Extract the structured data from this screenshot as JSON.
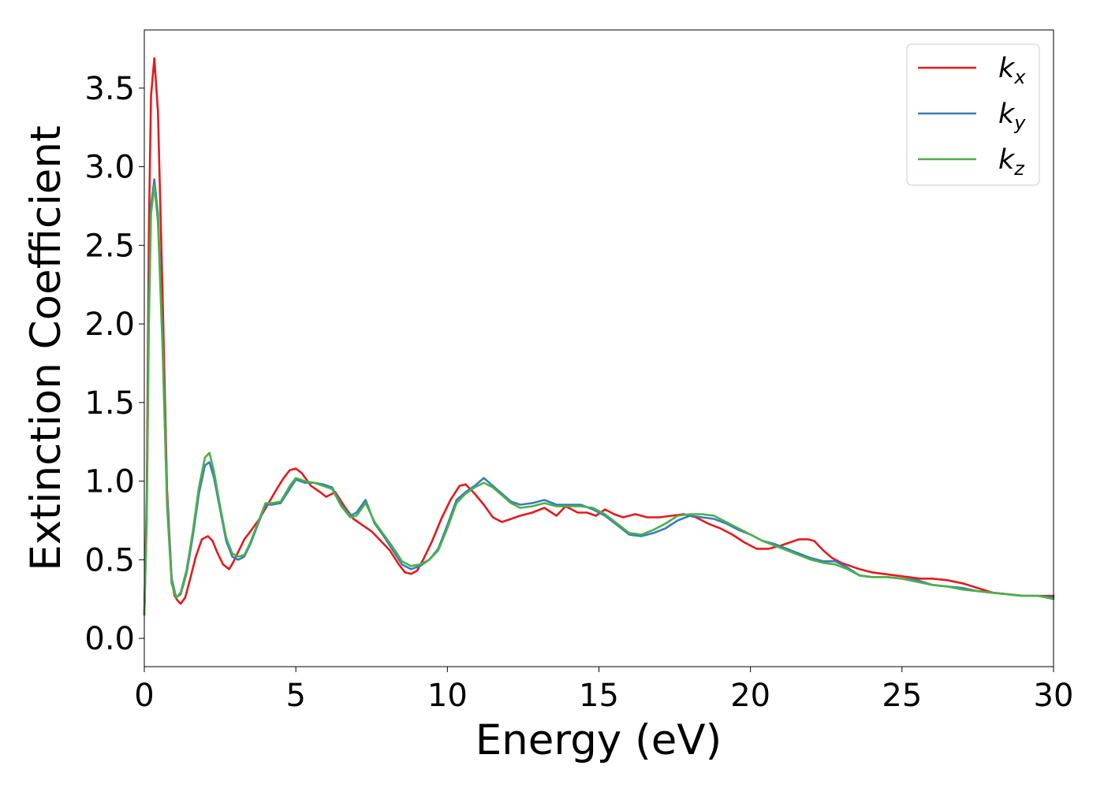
{
  "chart_data": {
    "type": "line",
    "title": "",
    "xlabel": "Energy (eV)",
    "ylabel": "Extinction Coefficient",
    "xlim": [
      0,
      30
    ],
    "ylim": [
      -0.18,
      3.87
    ],
    "xticks": [
      0,
      5,
      10,
      15,
      20,
      25,
      30
    ],
    "xtick_labels": [
      "0",
      "5",
      "10",
      "15",
      "20",
      "25",
      "30"
    ],
    "yticks": [
      0.0,
      0.5,
      1.0,
      1.5,
      2.0,
      2.5,
      3.0,
      3.5
    ],
    "ytick_labels": [
      "0.0",
      "0.5",
      "1.0",
      "1.5",
      "2.0",
      "2.5",
      "3.0",
      "3.5"
    ],
    "grid": false,
    "legend_position": "top-right",
    "series": [
      {
        "name": "kx",
        "label_main": "k",
        "label_sub": "x",
        "color": "#e41a1c",
        "x": [
          0.0,
          0.08,
          0.15,
          0.22,
          0.33,
          0.45,
          0.6,
          0.75,
          0.9,
          1.0,
          1.1,
          1.2,
          1.35,
          1.5,
          1.7,
          1.9,
          2.1,
          2.25,
          2.4,
          2.6,
          2.8,
          2.95,
          3.1,
          3.3,
          3.5,
          3.8,
          4.1,
          4.4,
          4.6,
          4.8,
          5.0,
          5.2,
          5.5,
          5.8,
          6.0,
          6.3,
          6.6,
          6.9,
          7.2,
          7.5,
          7.8,
          8.1,
          8.4,
          8.6,
          8.8,
          9.0,
          9.2,
          9.5,
          9.8,
          10.1,
          10.4,
          10.6,
          10.9,
          11.2,
          11.5,
          11.8,
          12.1,
          12.4,
          12.8,
          13.2,
          13.6,
          13.9,
          14.3,
          14.6,
          14.9,
          15.2,
          15.5,
          15.8,
          16.2,
          16.6,
          17.0,
          17.4,
          17.8,
          18.2,
          18.6,
          19.0,
          19.4,
          19.8,
          20.2,
          20.6,
          21.0,
          21.3,
          21.6,
          21.9,
          22.1,
          22.4,
          22.7,
          23.0,
          23.3,
          23.6,
          24.0,
          24.4,
          24.8,
          25.2,
          25.6,
          26.0,
          26.5,
          27.0,
          27.5,
          28.0,
          28.5,
          29.0,
          29.5,
          30.0
        ],
        "y": [
          0.15,
          0.9,
          2.6,
          3.45,
          3.69,
          3.35,
          2.2,
          0.95,
          0.38,
          0.27,
          0.24,
          0.22,
          0.26,
          0.37,
          0.52,
          0.63,
          0.65,
          0.62,
          0.55,
          0.47,
          0.44,
          0.49,
          0.55,
          0.63,
          0.68,
          0.76,
          0.86,
          0.96,
          1.02,
          1.07,
          1.08,
          1.05,
          0.97,
          0.93,
          0.9,
          0.93,
          0.84,
          0.76,
          0.72,
          0.68,
          0.62,
          0.56,
          0.47,
          0.42,
          0.41,
          0.43,
          0.5,
          0.62,
          0.76,
          0.88,
          0.97,
          0.98,
          0.92,
          0.85,
          0.77,
          0.74,
          0.76,
          0.78,
          0.8,
          0.83,
          0.78,
          0.84,
          0.8,
          0.8,
          0.78,
          0.82,
          0.79,
          0.77,
          0.79,
          0.77,
          0.77,
          0.78,
          0.79,
          0.77,
          0.73,
          0.7,
          0.66,
          0.61,
          0.57,
          0.57,
          0.59,
          0.61,
          0.63,
          0.63,
          0.62,
          0.56,
          0.51,
          0.48,
          0.46,
          0.44,
          0.42,
          0.41,
          0.4,
          0.39,
          0.38,
          0.38,
          0.37,
          0.35,
          0.32,
          0.29,
          0.28,
          0.27,
          0.27,
          0.27
        ]
      },
      {
        "name": "ky",
        "label_main": "k",
        "label_sub": "y",
        "color": "#377eb8",
        "x": [
          0.0,
          0.08,
          0.15,
          0.22,
          0.33,
          0.45,
          0.6,
          0.75,
          0.9,
          1.05,
          1.2,
          1.4,
          1.6,
          1.8,
          2.0,
          2.15,
          2.3,
          2.5,
          2.7,
          2.9,
          3.1,
          3.3,
          3.5,
          3.8,
          4.0,
          4.2,
          4.5,
          4.8,
          5.0,
          5.3,
          5.6,
          5.9,
          6.2,
          6.5,
          6.8,
          7.0,
          7.3,
          7.6,
          7.9,
          8.2,
          8.5,
          8.8,
          9.1,
          9.4,
          9.7,
          10.0,
          10.3,
          10.6,
          10.9,
          11.2,
          11.5,
          11.8,
          12.1,
          12.4,
          12.8,
          13.2,
          13.6,
          14.0,
          14.4,
          14.8,
          15.2,
          15.6,
          16.0,
          16.4,
          16.8,
          17.2,
          17.6,
          18.0,
          18.4,
          18.8,
          19.2,
          19.6,
          20.0,
          20.4,
          20.8,
          21.2,
          21.6,
          22.0,
          22.4,
          22.8,
          23.2,
          23.6,
          24.0,
          24.5,
          25.0,
          25.5,
          26.0,
          26.5,
          27.0,
          27.5,
          28.0,
          28.5,
          29.0,
          29.5,
          30.0
        ],
        "y": [
          0.15,
          0.8,
          2.1,
          2.75,
          2.92,
          2.7,
          1.9,
          0.9,
          0.38,
          0.26,
          0.28,
          0.42,
          0.65,
          0.92,
          1.1,
          1.12,
          1.02,
          0.82,
          0.62,
          0.52,
          0.5,
          0.52,
          0.6,
          0.75,
          0.85,
          0.85,
          0.86,
          0.95,
          1.01,
          0.99,
          0.99,
          0.98,
          0.96,
          0.85,
          0.78,
          0.8,
          0.88,
          0.73,
          0.65,
          0.56,
          0.47,
          0.44,
          0.46,
          0.5,
          0.57,
          0.72,
          0.88,
          0.93,
          0.97,
          1.02,
          0.97,
          0.92,
          0.87,
          0.85,
          0.86,
          0.88,
          0.85,
          0.85,
          0.85,
          0.82,
          0.78,
          0.72,
          0.66,
          0.65,
          0.67,
          0.7,
          0.75,
          0.78,
          0.77,
          0.76,
          0.73,
          0.69,
          0.66,
          0.62,
          0.6,
          0.57,
          0.54,
          0.51,
          0.49,
          0.49,
          0.45,
          0.4,
          0.39,
          0.39,
          0.38,
          0.37,
          0.34,
          0.33,
          0.32,
          0.3,
          0.29,
          0.28,
          0.27,
          0.27,
          0.26
        ]
      },
      {
        "name": "kz",
        "label_main": "k",
        "label_sub": "z",
        "color": "#4daf4a",
        "x": [
          0.0,
          0.08,
          0.15,
          0.22,
          0.33,
          0.45,
          0.6,
          0.75,
          0.9,
          1.05,
          1.2,
          1.4,
          1.6,
          1.8,
          2.0,
          2.15,
          2.3,
          2.5,
          2.7,
          2.9,
          3.1,
          3.3,
          3.5,
          3.8,
          4.0,
          4.2,
          4.5,
          4.8,
          5.0,
          5.3,
          5.6,
          5.9,
          6.2,
          6.5,
          6.8,
          7.0,
          7.3,
          7.6,
          7.9,
          8.2,
          8.5,
          8.8,
          9.1,
          9.4,
          9.7,
          10.0,
          10.3,
          10.6,
          10.9,
          11.2,
          11.5,
          11.8,
          12.1,
          12.4,
          12.8,
          13.2,
          13.6,
          14.0,
          14.4,
          14.8,
          15.2,
          15.6,
          16.0,
          16.4,
          16.8,
          17.2,
          17.6,
          18.0,
          18.4,
          18.8,
          19.2,
          19.6,
          20.0,
          20.4,
          20.8,
          21.2,
          21.6,
          22.0,
          22.4,
          22.8,
          23.2,
          23.6,
          24.0,
          24.5,
          25.0,
          25.5,
          26.0,
          26.5,
          27.0,
          27.5,
          28.0,
          28.5,
          29.0,
          29.5,
          30.0
        ],
        "y": [
          0.15,
          0.75,
          2.0,
          2.7,
          2.88,
          2.65,
          1.85,
          0.85,
          0.35,
          0.26,
          0.29,
          0.44,
          0.68,
          0.96,
          1.15,
          1.18,
          1.06,
          0.84,
          0.64,
          0.54,
          0.52,
          0.53,
          0.61,
          0.76,
          0.86,
          0.86,
          0.87,
          0.97,
          1.02,
          1.0,
          0.99,
          0.97,
          0.95,
          0.84,
          0.77,
          0.78,
          0.86,
          0.74,
          0.66,
          0.58,
          0.49,
          0.46,
          0.47,
          0.5,
          0.56,
          0.7,
          0.86,
          0.92,
          0.96,
          0.99,
          0.96,
          0.91,
          0.86,
          0.83,
          0.84,
          0.86,
          0.84,
          0.84,
          0.84,
          0.83,
          0.79,
          0.73,
          0.67,
          0.66,
          0.69,
          0.73,
          0.78,
          0.79,
          0.79,
          0.78,
          0.74,
          0.7,
          0.66,
          0.62,
          0.59,
          0.56,
          0.53,
          0.5,
          0.48,
          0.47,
          0.44,
          0.4,
          0.39,
          0.39,
          0.38,
          0.36,
          0.34,
          0.33,
          0.31,
          0.3,
          0.29,
          0.28,
          0.27,
          0.27,
          0.25
        ]
      }
    ]
  }
}
